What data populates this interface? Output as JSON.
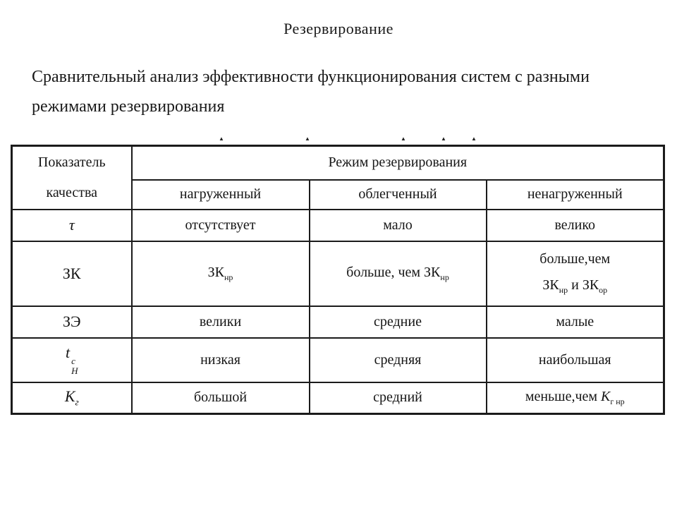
{
  "slide": {
    "title": "Резервирование",
    "subtitle_lines": [
      "Сравнительный анализ эффективности функционирования систем с разными",
      "режимами резервирования"
    ]
  },
  "artifacts": {
    "glyph": "▲",
    "positions_x": [
      310,
      432,
      568,
      625,
      668
    ]
  },
  "table": {
    "corner_header_lines": [
      "Показатель",
      "качества"
    ],
    "group_header": "Режим резервирования",
    "column_headers": [
      "нагруженный",
      "облегченный",
      "ненагруженный"
    ],
    "rows": [
      {
        "indicator": [
          [
            {
              "t": "τ",
              "s": "i"
            }
          ]
        ],
        "cells": [
          [
            [
              {
                "t": "отсутствует"
              }
            ]
          ],
          [
            [
              {
                "t": "мало"
              }
            ]
          ],
          [
            [
              {
                "t": "велико"
              }
            ]
          ]
        ]
      },
      {
        "indicator": [
          [
            {
              "t": "ЗК"
            }
          ]
        ],
        "cells": [
          [
            [
              {
                "t": "ЗК"
              },
              {
                "t": "нр",
                "s": "sub"
              }
            ]
          ],
          [
            [
              {
                "t": "больше, чем ЗК"
              },
              {
                "t": "нр",
                "s": "sub"
              }
            ]
          ],
          [
            [
              {
                "t": "больше,чем"
              }
            ],
            [
              {
                "t": "ЗК"
              },
              {
                "t": "нр",
                "s": "sub"
              },
              {
                "t": " и ЗК"
              },
              {
                "t": "ор",
                "s": "sub"
              }
            ]
          ]
        ]
      },
      {
        "indicator": [
          [
            {
              "t": "ЗЭ"
            }
          ]
        ],
        "cells": [
          [
            [
              {
                "t": "велики"
              }
            ]
          ],
          [
            [
              {
                "t": "средние"
              }
            ]
          ],
          [
            [
              {
                "t": "малые"
              }
            ]
          ]
        ]
      },
      {
        "indicator": [
          [
            {
              "t": "t",
              "s": "i"
            },
            {
              "stack": {
                "top": "c",
                "bottom": "H"
              }
            }
          ]
        ],
        "cells": [
          [
            [
              {
                "t": "низкая"
              }
            ]
          ],
          [
            [
              {
                "t": "средняя"
              }
            ]
          ],
          [
            [
              {
                "t": "наибольшая"
              }
            ]
          ]
        ]
      },
      {
        "indicator": [
          [
            {
              "t": "К",
              "s": "i"
            },
            {
              "t": "г",
              "s": "sub i"
            }
          ]
        ],
        "cells": [
          [
            [
              {
                "t": "большой"
              }
            ]
          ],
          [
            [
              {
                "t": "средний"
              }
            ]
          ],
          [
            [
              {
                "t": "меньше,чем "
              },
              {
                "t": "К",
                "s": "i"
              },
              {
                "t": "г нр",
                "s": "sub"
              }
            ]
          ]
        ]
      }
    ]
  }
}
